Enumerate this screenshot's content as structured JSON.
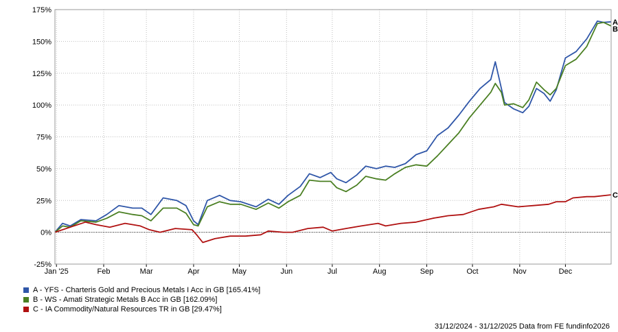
{
  "chart_data": {
    "type": "line",
    "title": "",
    "xlabel": "",
    "ylabel": "",
    "ylim": [
      -25,
      175
    ],
    "y_ticks": [
      -25,
      0,
      25,
      50,
      75,
      100,
      125,
      150,
      175
    ],
    "y_tick_labels": [
      "-25%",
      "0%",
      "25%",
      "50%",
      "75%",
      "100%",
      "125%",
      "150%",
      "175%"
    ],
    "x_range": [
      "2024-12-31",
      "2025-12-31"
    ],
    "x_ticks": [
      "2025-01-01",
      "2025-02-01",
      "2025-03-01",
      "2025-04-01",
      "2025-05-01",
      "2025-06-01",
      "2025-07-01",
      "2025-08-01",
      "2025-09-01",
      "2025-10-01",
      "2025-11-01",
      "2025-12-01"
    ],
    "x_tick_labels": [
      "Jan '25",
      "Feb",
      "Mar",
      "Apr",
      "May",
      "Jun",
      "Jul",
      "Aug",
      "Sep",
      "Oct",
      "Nov",
      "Dec"
    ],
    "grid": true,
    "legend_position": "bottom-left",
    "series": [
      {
        "name": "A - YFS - Charteris Gold and Precious Metals I Acc in GB [165.41%]",
        "end_label": "A",
        "color": "#2f56a8",
        "points": [
          [
            "2024-12-31",
            0
          ],
          [
            "2025-01-05",
            7
          ],
          [
            "2025-01-10",
            5
          ],
          [
            "2025-01-17",
            10
          ],
          [
            "2025-01-27",
            9
          ],
          [
            "2025-02-03",
            14
          ],
          [
            "2025-02-11",
            21
          ],
          [
            "2025-02-20",
            19
          ],
          [
            "2025-02-26",
            19
          ],
          [
            "2025-03-04",
            14
          ],
          [
            "2025-03-12",
            27
          ],
          [
            "2025-03-21",
            25
          ],
          [
            "2025-03-27",
            21
          ],
          [
            "2025-04-01",
            9
          ],
          [
            "2025-04-04",
            6
          ],
          [
            "2025-04-10",
            25
          ],
          [
            "2025-04-18",
            29
          ],
          [
            "2025-04-25",
            25
          ],
          [
            "2025-05-02",
            24
          ],
          [
            "2025-05-12",
            20
          ],
          [
            "2025-05-20",
            26
          ],
          [
            "2025-05-27",
            22
          ],
          [
            "2025-06-02",
            29
          ],
          [
            "2025-06-10",
            36
          ],
          [
            "2025-06-16",
            46
          ],
          [
            "2025-06-23",
            43
          ],
          [
            "2025-06-30",
            47
          ],
          [
            "2025-07-04",
            42
          ],
          [
            "2025-07-10",
            39
          ],
          [
            "2025-07-17",
            45
          ],
          [
            "2025-07-23",
            52
          ],
          [
            "2025-07-30",
            50
          ],
          [
            "2025-08-05",
            52
          ],
          [
            "2025-08-11",
            51
          ],
          [
            "2025-08-18",
            54
          ],
          [
            "2025-08-25",
            61
          ],
          [
            "2025-09-01",
            64
          ],
          [
            "2025-09-08",
            76
          ],
          [
            "2025-09-15",
            82
          ],
          [
            "2025-09-22",
            92
          ],
          [
            "2025-09-29",
            103
          ],
          [
            "2025-10-06",
            113
          ],
          [
            "2025-10-13",
            120
          ],
          [
            "2025-10-16",
            134
          ],
          [
            "2025-10-20",
            113
          ],
          [
            "2025-10-22",
            102
          ],
          [
            "2025-10-28",
            97
          ],
          [
            "2025-11-03",
            94
          ],
          [
            "2025-11-07",
            99
          ],
          [
            "2025-11-12",
            113
          ],
          [
            "2025-11-17",
            109
          ],
          [
            "2025-11-21",
            103
          ],
          [
            "2025-11-25",
            112
          ],
          [
            "2025-12-01",
            137
          ],
          [
            "2025-12-08",
            142
          ],
          [
            "2025-12-15",
            152
          ],
          [
            "2025-12-22",
            166
          ],
          [
            "2025-12-26",
            165
          ],
          [
            "2025-12-31",
            165.41
          ]
        ]
      },
      {
        "name": "B - WS - Amati Strategic Metals B Acc in GB [162.09%]",
        "end_label": "B",
        "color": "#4a7f22",
        "points": [
          [
            "2024-12-31",
            0
          ],
          [
            "2025-01-05",
            5
          ],
          [
            "2025-01-10",
            4
          ],
          [
            "2025-01-17",
            9
          ],
          [
            "2025-01-27",
            8
          ],
          [
            "2025-02-03",
            11
          ],
          [
            "2025-02-11",
            16
          ],
          [
            "2025-02-20",
            14
          ],
          [
            "2025-02-26",
            13
          ],
          [
            "2025-03-04",
            9
          ],
          [
            "2025-03-12",
            19
          ],
          [
            "2025-03-21",
            19
          ],
          [
            "2025-03-27",
            15
          ],
          [
            "2025-04-01",
            6
          ],
          [
            "2025-04-04",
            5
          ],
          [
            "2025-04-10",
            20
          ],
          [
            "2025-04-18",
            24
          ],
          [
            "2025-04-25",
            22
          ],
          [
            "2025-05-02",
            22
          ],
          [
            "2025-05-12",
            18
          ],
          [
            "2025-05-20",
            23
          ],
          [
            "2025-05-27",
            19
          ],
          [
            "2025-06-02",
            24
          ],
          [
            "2025-06-10",
            29
          ],
          [
            "2025-06-16",
            41
          ],
          [
            "2025-06-23",
            40
          ],
          [
            "2025-06-30",
            40
          ],
          [
            "2025-07-04",
            35
          ],
          [
            "2025-07-10",
            32
          ],
          [
            "2025-07-17",
            37
          ],
          [
            "2025-07-23",
            44
          ],
          [
            "2025-07-30",
            42
          ],
          [
            "2025-08-05",
            41
          ],
          [
            "2025-08-11",
            46
          ],
          [
            "2025-08-18",
            51
          ],
          [
            "2025-08-25",
            53
          ],
          [
            "2025-09-01",
            52
          ],
          [
            "2025-09-08",
            60
          ],
          [
            "2025-09-15",
            69
          ],
          [
            "2025-09-22",
            78
          ],
          [
            "2025-09-29",
            90
          ],
          [
            "2025-10-06",
            100
          ],
          [
            "2025-10-13",
            110
          ],
          [
            "2025-10-16",
            117
          ],
          [
            "2025-10-20",
            110
          ],
          [
            "2025-10-22",
            100
          ],
          [
            "2025-10-28",
            101
          ],
          [
            "2025-11-03",
            98
          ],
          [
            "2025-11-07",
            104
          ],
          [
            "2025-11-12",
            118
          ],
          [
            "2025-11-17",
            112
          ],
          [
            "2025-11-21",
            108
          ],
          [
            "2025-11-25",
            113
          ],
          [
            "2025-12-01",
            131
          ],
          [
            "2025-12-08",
            136
          ],
          [
            "2025-12-15",
            146
          ],
          [
            "2025-12-22",
            164
          ],
          [
            "2025-12-26",
            165
          ],
          [
            "2025-12-31",
            162.09
          ]
        ]
      },
      {
        "name": "C - IA Commodity/Natural Resources TR in GB [29.47%]",
        "end_label": "C",
        "color": "#b01010",
        "points": [
          [
            "2024-12-31",
            0
          ],
          [
            "2025-01-10",
            4
          ],
          [
            "2025-01-20",
            8
          ],
          [
            "2025-01-27",
            6
          ],
          [
            "2025-02-05",
            4
          ],
          [
            "2025-02-15",
            7
          ],
          [
            "2025-02-25",
            5
          ],
          [
            "2025-03-03",
            2
          ],
          [
            "2025-03-10",
            0
          ],
          [
            "2025-03-20",
            3
          ],
          [
            "2025-03-31",
            2
          ],
          [
            "2025-04-03",
            -2
          ],
          [
            "2025-04-07",
            -8
          ],
          [
            "2025-04-15",
            -5
          ],
          [
            "2025-04-25",
            -3
          ],
          [
            "2025-05-05",
            -3
          ],
          [
            "2025-05-15",
            -2
          ],
          [
            "2025-05-20",
            1
          ],
          [
            "2025-05-30",
            0
          ],
          [
            "2025-06-05",
            0
          ],
          [
            "2025-06-15",
            3
          ],
          [
            "2025-06-25",
            4
          ],
          [
            "2025-07-01",
            1
          ],
          [
            "2025-07-10",
            3
          ],
          [
            "2025-07-20",
            5
          ],
          [
            "2025-07-31",
            7
          ],
          [
            "2025-08-05",
            5
          ],
          [
            "2025-08-15",
            7
          ],
          [
            "2025-08-25",
            8
          ],
          [
            "2025-09-05",
            11
          ],
          [
            "2025-09-15",
            13
          ],
          [
            "2025-09-25",
            14
          ],
          [
            "2025-10-05",
            18
          ],
          [
            "2025-10-15",
            20
          ],
          [
            "2025-10-20",
            22
          ],
          [
            "2025-10-31",
            20
          ],
          [
            "2025-11-10",
            21
          ],
          [
            "2025-11-20",
            22
          ],
          [
            "2025-11-25",
            24
          ],
          [
            "2025-12-01",
            24
          ],
          [
            "2025-12-06",
            27
          ],
          [
            "2025-12-15",
            28
          ],
          [
            "2025-12-20",
            28
          ],
          [
            "2025-12-31",
            29.47
          ]
        ]
      }
    ]
  },
  "footer": {
    "date_range": "31/12/2024 - 31/12/2025",
    "source": "Data from FE fundinfo2026"
  }
}
